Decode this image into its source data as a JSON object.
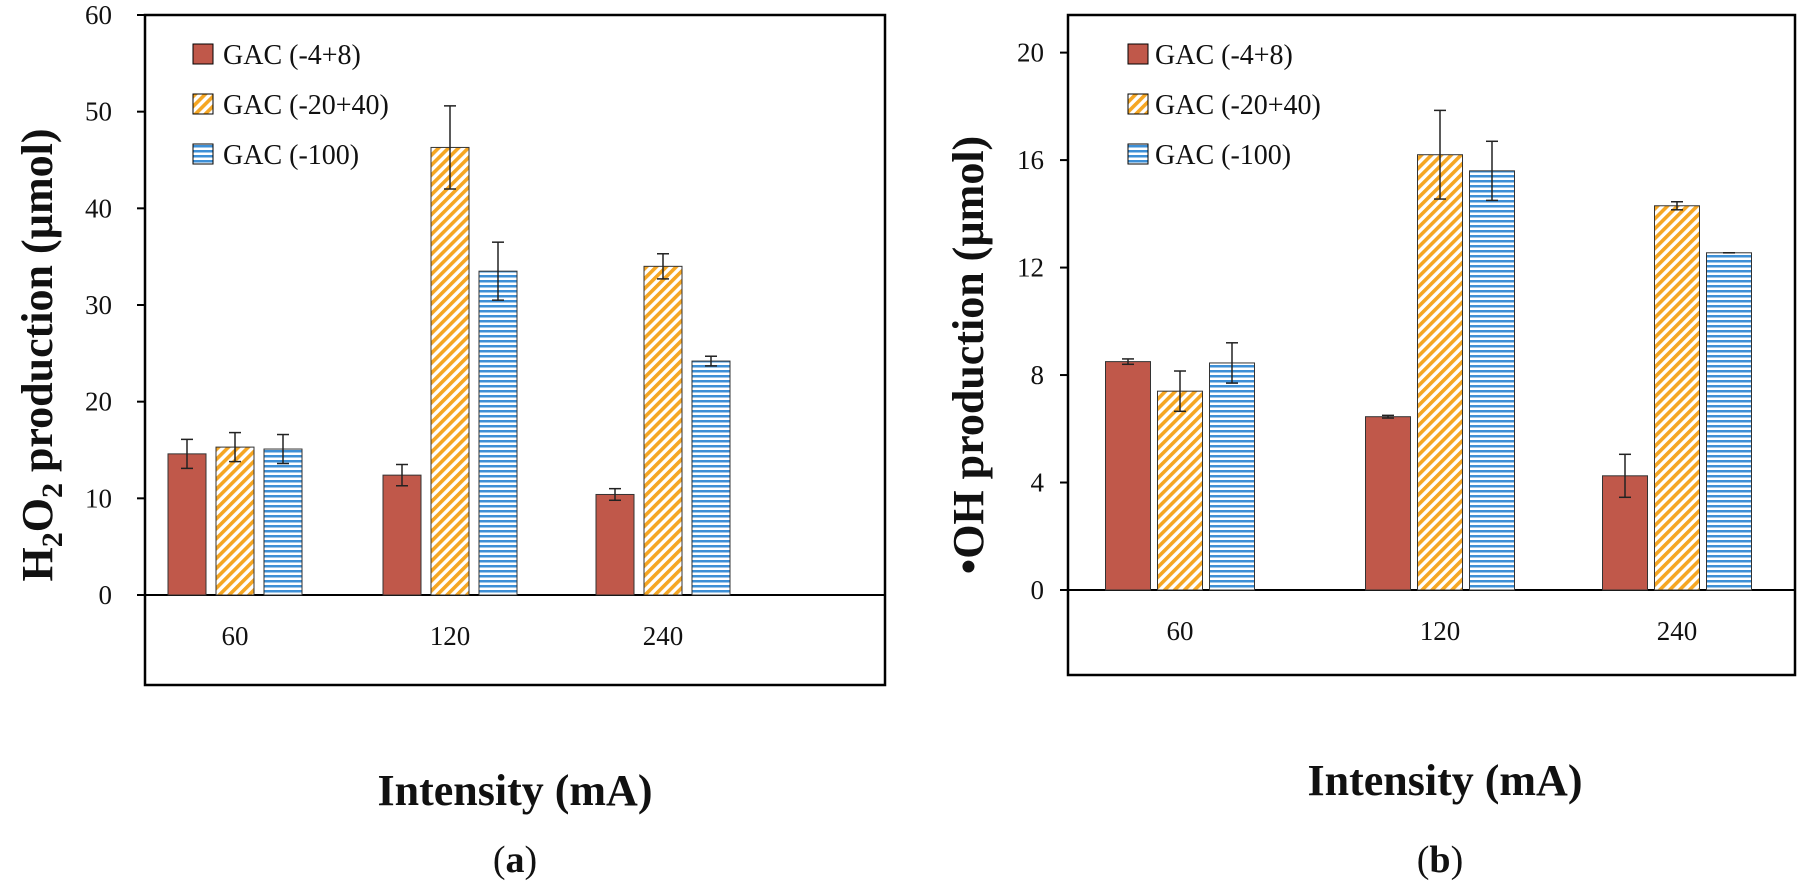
{
  "chart_data": [
    {
      "panel": "a",
      "type": "bar",
      "categories": [
        "60",
        "120",
        "240"
      ],
      "series": [
        {
          "name": "GAC (-4+8)",
          "pattern": "solid",
          "color": "#C0584A",
          "values": [
            14.6,
            12.4,
            10.4
          ],
          "errors": [
            1.5,
            1.1,
            0.6
          ]
        },
        {
          "name": "GAC (-20+40)",
          "pattern": "diagonal",
          "color": "#F5A623",
          "values": [
            15.3,
            46.3,
            34.0
          ],
          "errors": [
            1.5,
            4.3,
            1.3
          ]
        },
        {
          "name": "GAC (-100)",
          "pattern": "horizontal",
          "color": "#3D8FD6",
          "values": [
            15.1,
            33.5,
            24.2
          ],
          "errors": [
            1.5,
            3.0,
            0.5
          ]
        }
      ],
      "xlabel": "Intensity (mA)",
      "ylabel": {
        "prefix": "H",
        "sub1": "2",
        "mid": "O",
        "sub2": "2",
        "suffix": " production (µmol)"
      },
      "ylim": [
        0,
        60
      ],
      "yticks": [
        "0",
        "10",
        "20",
        "30",
        "40",
        "50",
        "60"
      ],
      "tag": {
        "open": "(",
        "letter": "a",
        "close": ")"
      },
      "legend": "top-left",
      "grid": false
    },
    {
      "panel": "b",
      "type": "bar",
      "categories": [
        "60",
        "120",
        "240"
      ],
      "series": [
        {
          "name": "GAC (-4+8)",
          "pattern": "solid",
          "color": "#C0584A",
          "values": [
            8.5,
            6.45,
            4.25
          ],
          "errors": [
            0.1,
            0.05,
            0.8
          ]
        },
        {
          "name": "GAC (-20+40)",
          "pattern": "diagonal",
          "color": "#F5A623",
          "values": [
            7.4,
            16.2,
            14.3
          ],
          "errors": [
            0.75,
            1.65,
            0.15
          ]
        },
        {
          "name": "GAC (-100)",
          "pattern": "horizontal",
          "color": "#3D8FD6",
          "values": [
            8.45,
            15.6,
            12.55
          ],
          "errors": [
            0.75,
            1.1,
            0.0
          ]
        }
      ],
      "xlabel": "Intensity (mA)",
      "ylabel": {
        "text": "•OH production (µmol)"
      },
      "ylim": [
        0,
        21.4
      ],
      "yticks": [
        "0",
        "4",
        "8",
        "12",
        "16",
        "20"
      ],
      "tag": {
        "open": "(",
        "letter": "b",
        "close": ")"
      },
      "legend": "top-left",
      "grid": false
    }
  ]
}
